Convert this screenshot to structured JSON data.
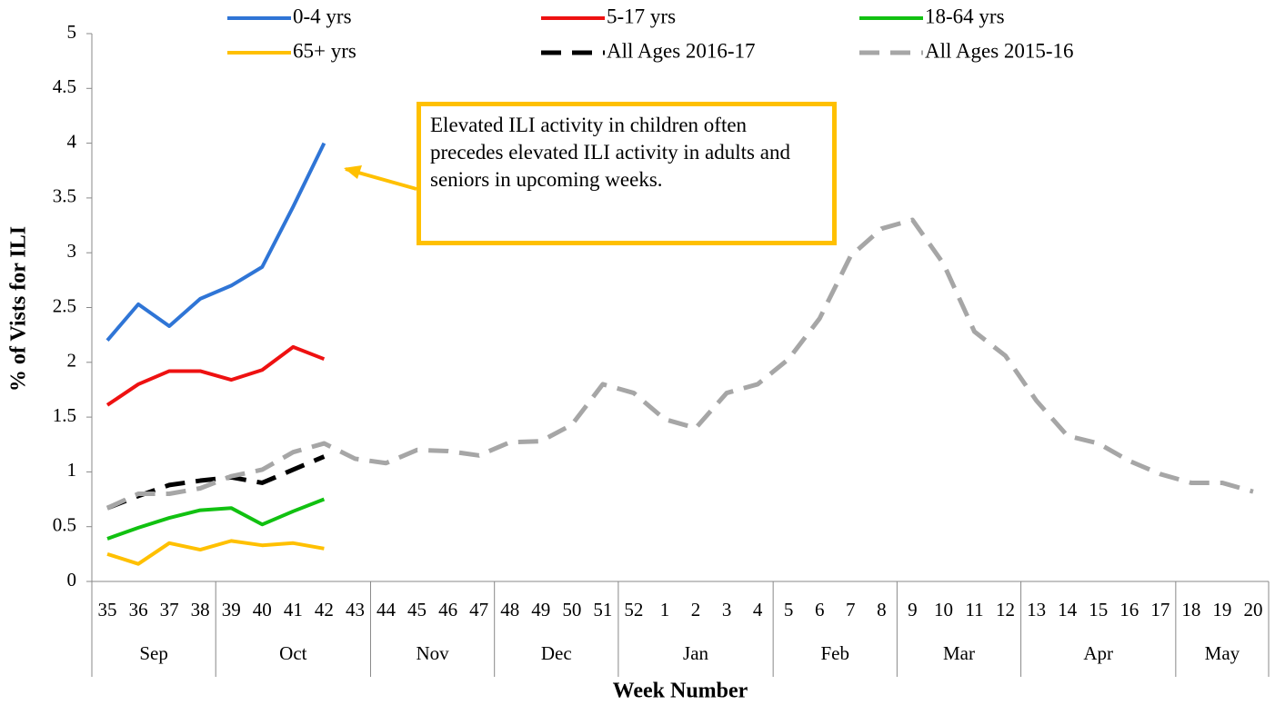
{
  "chart_data": {
    "type": "line",
    "x_label": "Week Number",
    "y_label": "% of Vists for ILI",
    "categories": [
      "35",
      "36",
      "37",
      "38",
      "39",
      "40",
      "41",
      "42",
      "43",
      "44",
      "45",
      "46",
      "47",
      "48",
      "49",
      "50",
      "51",
      "52",
      "1",
      "2",
      "3",
      "4",
      "5",
      "6",
      "7",
      "8",
      "9",
      "10",
      "11",
      "12",
      "13",
      "14",
      "15",
      "16",
      "17",
      "18",
      "19",
      "20"
    ],
    "category_groups": [
      {
        "label": "Sep",
        "size": 4
      },
      {
        "label": "Oct",
        "size": 5
      },
      {
        "label": "Nov",
        "size": 4
      },
      {
        "label": "Dec",
        "size": 4
      },
      {
        "label": "Jan",
        "size": 5
      },
      {
        "label": "Feb",
        "size": 4
      },
      {
        "label": "Mar",
        "size": 4
      },
      {
        "label": "Apr",
        "size": 5
      },
      {
        "label": "May",
        "size": 3
      }
    ],
    "ylim": [
      0,
      5
    ],
    "yticks": [
      0,
      0.5,
      1,
      1.5,
      2,
      2.5,
      3,
      3.5,
      4,
      4.5,
      5
    ],
    "grid": false,
    "legend_position": "top",
    "series": [
      {
        "name": "0-4 yrs",
        "color": "#2f75d6",
        "dashed": false,
        "values": [
          2.2,
          2.53,
          2.33,
          2.58,
          2.7,
          2.87,
          3.42,
          4.0,
          null,
          null,
          null,
          null,
          null,
          null,
          null,
          null,
          null,
          null,
          null,
          null,
          null,
          null,
          null,
          null,
          null,
          null,
          null,
          null,
          null,
          null,
          null,
          null,
          null,
          null,
          null,
          null,
          null,
          null
        ]
      },
      {
        "name": "5-17 yrs",
        "color": "#ee1111",
        "dashed": false,
        "values": [
          1.61,
          1.8,
          1.92,
          1.92,
          1.84,
          1.93,
          2.14,
          2.03,
          null,
          null,
          null,
          null,
          null,
          null,
          null,
          null,
          null,
          null,
          null,
          null,
          null,
          null,
          null,
          null,
          null,
          null,
          null,
          null,
          null,
          null,
          null,
          null,
          null,
          null,
          null,
          null,
          null,
          null
        ]
      },
      {
        "name": "18-64 yrs",
        "color": "#11c111",
        "dashed": false,
        "values": [
          0.39,
          0.49,
          0.58,
          0.65,
          0.67,
          0.52,
          0.64,
          0.75,
          null,
          null,
          null,
          null,
          null,
          null,
          null,
          null,
          null,
          null,
          null,
          null,
          null,
          null,
          null,
          null,
          null,
          null,
          null,
          null,
          null,
          null,
          null,
          null,
          null,
          null,
          null,
          null,
          null,
          null
        ]
      },
      {
        "name": "65+ yrs",
        "color": "#ffc000",
        "dashed": false,
        "values": [
          0.25,
          0.16,
          0.35,
          0.29,
          0.37,
          0.33,
          0.35,
          0.3,
          null,
          null,
          null,
          null,
          null,
          null,
          null,
          null,
          null,
          null,
          null,
          null,
          null,
          null,
          null,
          null,
          null,
          null,
          null,
          null,
          null,
          null,
          null,
          null,
          null,
          null,
          null,
          null,
          null,
          null
        ]
      },
      {
        "name": "All Ages 2016-17",
        "color": "#000000",
        "dashed": true,
        "values": [
          0.67,
          0.78,
          0.88,
          0.92,
          0.95,
          0.9,
          1.02,
          1.14,
          null,
          null,
          null,
          null,
          null,
          null,
          null,
          null,
          null,
          null,
          null,
          null,
          null,
          null,
          null,
          null,
          null,
          null,
          null,
          null,
          null,
          null,
          null,
          null,
          null,
          null,
          null,
          null,
          null,
          null
        ]
      },
      {
        "name": "All Ages 2015-16",
        "color": "#a6a6a6",
        "dashed": true,
        "values": [
          0.67,
          0.8,
          0.8,
          0.85,
          0.96,
          1.02,
          1.18,
          1.26,
          1.12,
          1.08,
          1.2,
          1.19,
          1.15,
          1.27,
          1.28,
          1.43,
          1.8,
          1.72,
          1.48,
          1.4,
          1.72,
          1.8,
          2.03,
          2.4,
          2.97,
          3.22,
          3.3,
          2.9,
          2.28,
          2.06,
          1.65,
          1.33,
          1.26,
          1.1,
          0.98,
          0.9,
          0.9,
          0.82
        ]
      }
    ],
    "annotation": "Elevated ILI activity in children often precedes elevated ILI activity in adults and seniors in upcoming weeks."
  }
}
